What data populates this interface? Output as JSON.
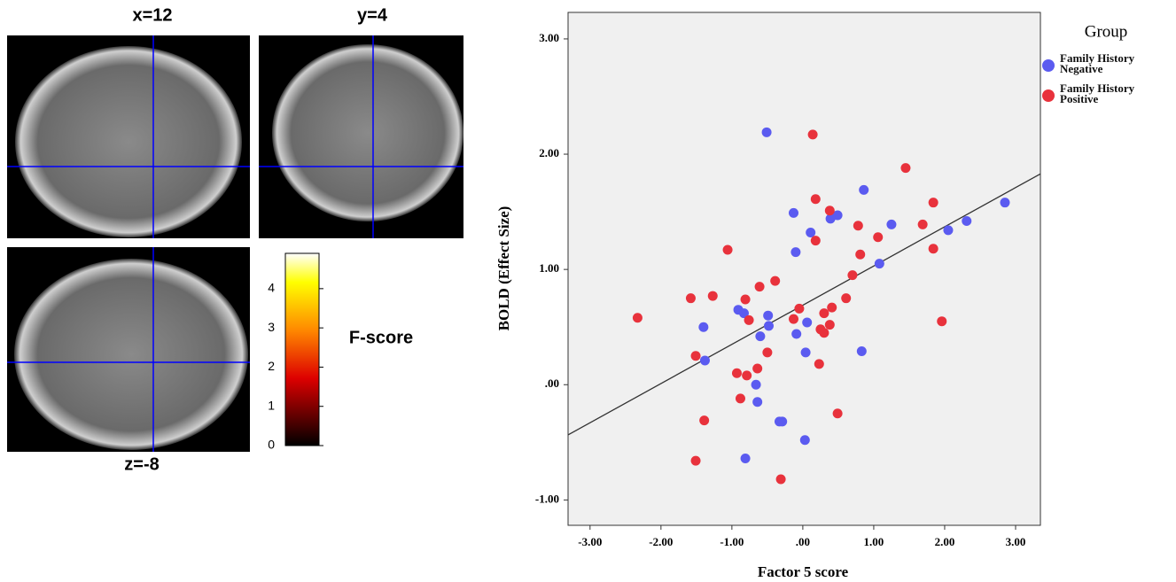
{
  "brain_panels": {
    "sagittal": "x=12",
    "coronal": "y=4",
    "axial": "z=-8"
  },
  "chart_data": [
    {
      "type": "colorbar",
      "label": "F-score",
      "ylim": [
        0,
        4.9
      ],
      "yticks": [
        0,
        1,
        2,
        3,
        4
      ]
    },
    {
      "type": "scatter",
      "xlabel": "Factor 5 score",
      "ylabel": "BOLD (Effect Size)",
      "legend_title": "Group",
      "xlim": [
        -3.31,
        3.35
      ],
      "ylim": [
        -1.22,
        3.23
      ],
      "xticks": [
        {
          "value": -3,
          "label": "-3.00"
        },
        {
          "value": -2,
          "label": "-2.00"
        },
        {
          "value": -1,
          "label": "-1.00"
        },
        {
          "value": 0,
          "label": ".00"
        },
        {
          "value": 1,
          "label": "1.00"
        },
        {
          "value": 2,
          "label": "2.00"
        },
        {
          "value": 3,
          "label": "3.00"
        }
      ],
      "yticks": [
        {
          "value": -1,
          "label": "-1.00"
        },
        {
          "value": 0,
          "label": ".00"
        },
        {
          "value": 1,
          "label": "1.00"
        },
        {
          "value": 2,
          "label": "2.00"
        },
        {
          "value": 3,
          "label": "3.00"
        }
      ],
      "fit": {
        "slope": 0.34,
        "intercept": 0.69
      },
      "series": [
        {
          "name": "Family History Negative",
          "color": "#5b5bf0",
          "x": [
            -0.51,
            0.86,
            -0.13,
            0.49,
            0.39,
            1.25,
            0.11,
            2.05,
            2.31,
            2.85,
            1.08,
            -0.1,
            -0.91,
            -0.83,
            -0.49,
            -0.48,
            -0.6,
            -1.4,
            -0.09,
            0.06,
            0.83,
            0.04,
            -1.38,
            -0.66,
            -0.64,
            -0.33,
            -0.29,
            0.03,
            -0.81
          ],
          "values": [
            2.19,
            1.69,
            1.49,
            1.47,
            1.44,
            1.39,
            1.32,
            1.34,
            1.42,
            1.58,
            1.05,
            1.15,
            0.65,
            0.62,
            0.6,
            0.51,
            0.42,
            0.5,
            0.44,
            0.54,
            0.29,
            0.28,
            0.21,
            0.0,
            -0.15,
            -0.32,
            -0.32,
            -0.48,
            -0.64
          ]
        },
        {
          "name": "Family History Positive",
          "color": "#e8323c",
          "x": [
            0.14,
            1.45,
            0.18,
            0.38,
            1.84,
            0.78,
            1.69,
            1.06,
            0.18,
            0.81,
            1.84,
            -1.06,
            0.7,
            -0.39,
            -0.61,
            -1.27,
            -1.58,
            -0.81,
            0.61,
            0.41,
            -0.05,
            0.3,
            -2.33,
            -0.13,
            -0.76,
            1.96,
            0.38,
            0.25,
            0.3,
            -0.5,
            -1.51,
            0.23,
            -0.64,
            -0.93,
            -0.79,
            -0.88,
            0.49,
            -1.39,
            -1.51,
            -0.31
          ],
          "values": [
            2.17,
            1.88,
            1.61,
            1.51,
            1.58,
            1.38,
            1.39,
            1.28,
            1.25,
            1.13,
            1.18,
            1.17,
            0.95,
            0.9,
            0.85,
            0.77,
            0.75,
            0.74,
            0.75,
            0.67,
            0.66,
            0.62,
            0.58,
            0.57,
            0.56,
            0.55,
            0.52,
            0.48,
            0.45,
            0.28,
            0.25,
            0.18,
            0.14,
            0.1,
            0.08,
            -0.12,
            -0.25,
            -0.31,
            -0.66,
            -0.82
          ]
        }
      ]
    }
  ]
}
